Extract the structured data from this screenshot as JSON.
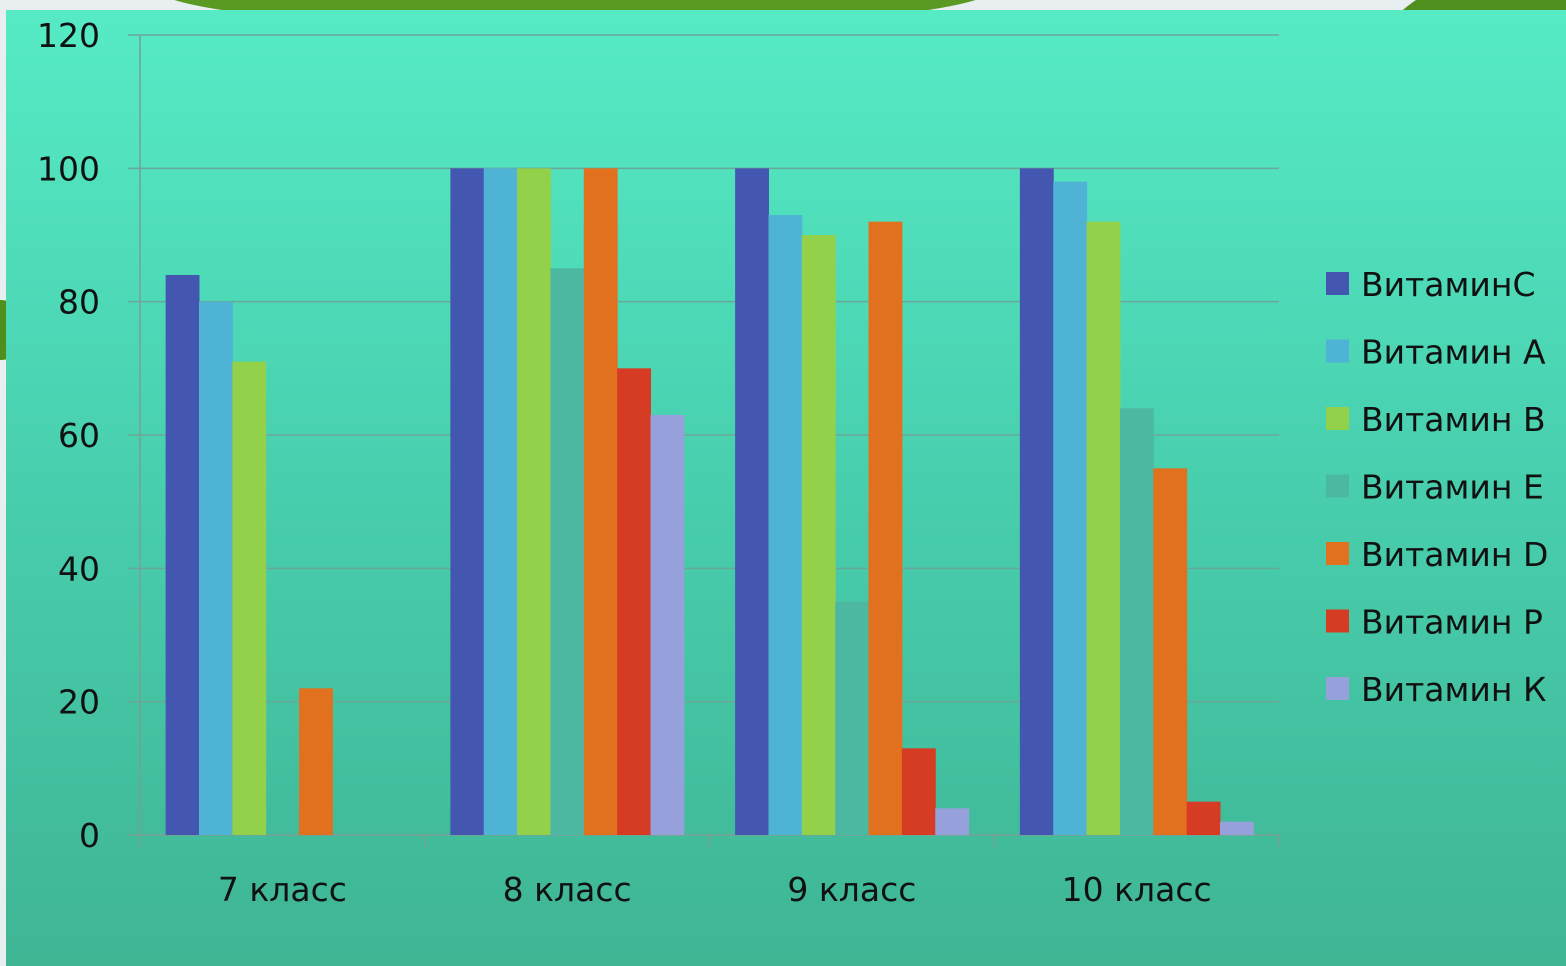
{
  "colors": {
    "gridline": "#6aa796",
    "axis": "#7b9e95",
    "text": "#111111"
  },
  "chart_data": {
    "type": "bar",
    "title": "",
    "xlabel": "",
    "ylabel": "",
    "ylim": [
      0,
      120
    ],
    "yticks": [
      0,
      20,
      40,
      60,
      80,
      100,
      120
    ],
    "grid": true,
    "legend_position": "right",
    "categories": [
      "7 класс",
      "8 класс",
      "9 класс",
      "10 класс"
    ],
    "series": [
      {
        "name": "ВитаминС",
        "color": "#4356b0",
        "values": [
          84,
          100,
          100,
          100
        ]
      },
      {
        "name": "Витамин А",
        "color": "#4fb3d6",
        "values": [
          80,
          100,
          93,
          98
        ]
      },
      {
        "name": "Витамин В",
        "color": "#93d14b",
        "values": [
          71,
          100,
          90,
          92
        ]
      },
      {
        "name": "Витамин Е",
        "color": "#4db8a2",
        "values": [
          0,
          85,
          35,
          64
        ]
      },
      {
        "name": "Витамин D",
        "color": "#e1711f",
        "values": [
          22,
          100,
          92,
          55
        ]
      },
      {
        "name": "Витамин Р",
        "color": "#d63b23",
        "values": [
          0,
          70,
          13,
          5
        ]
      },
      {
        "name": "Витамин К",
        "color": "#96a0da",
        "values": [
          0,
          63,
          4,
          2
        ]
      }
    ]
  }
}
